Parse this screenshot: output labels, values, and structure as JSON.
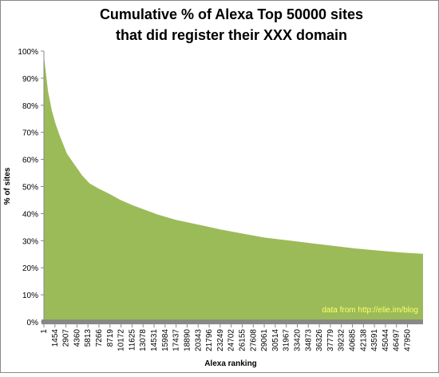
{
  "chart_data": {
    "type": "area",
    "title": [
      "Cumulative % of Alexa Top 50000 sites",
      "that did register their XXX domain"
    ],
    "x_label": "Alexa ranking",
    "y_label": "% of sites",
    "annotation": "data from http://elie.im/blog",
    "color": "#9bbb59",
    "x": [
      1,
      500,
      1000,
      1500,
      2000,
      3000,
      4000,
      5000,
      6000,
      7266,
      8719,
      10000,
      11625,
      13078,
      15000,
      17437,
      20000,
      23249,
      26155,
      29061,
      32000,
      35000,
      38000,
      41000,
      44000,
      47000,
      50000
    ],
    "values": [
      97,
      85,
      78,
      73,
      69,
      62,
      58,
      54,
      51,
      49,
      47,
      45,
      43,
      41.5,
      39.5,
      37.5,
      36,
      34,
      32.5,
      31,
      30,
      29,
      28,
      27,
      26.2,
      25.5,
      25
    ],
    "xlim": [
      1,
      50000
    ],
    "xticks": [
      1,
      1454,
      2907,
      4360,
      5813,
      7266,
      8719,
      10172,
      11625,
      13078,
      14531,
      15984,
      17437,
      18890,
      20343,
      21796,
      23249,
      24702,
      26155,
      27608,
      29061,
      30514,
      31967,
      33420,
      34873,
      36326,
      37779,
      39232,
      40685,
      42138,
      43591,
      45044,
      46497,
      47950
    ],
    "ylim": [
      0,
      100
    ],
    "yticks": [
      {
        "value": 0,
        "label": "0%"
      },
      {
        "value": 10,
        "label": "10%"
      },
      {
        "value": 20,
        "label": "20%"
      },
      {
        "value": 30,
        "label": "30%"
      },
      {
        "value": 40,
        "label": "40%"
      },
      {
        "value": 50,
        "label": "50%"
      },
      {
        "value": 60,
        "label": "60%"
      },
      {
        "value": 70,
        "label": "70%"
      },
      {
        "value": 80,
        "label": "80%"
      },
      {
        "value": 90,
        "label": "90%"
      },
      {
        "value": 100,
        "label": "100%"
      }
    ],
    "grid": false
  }
}
